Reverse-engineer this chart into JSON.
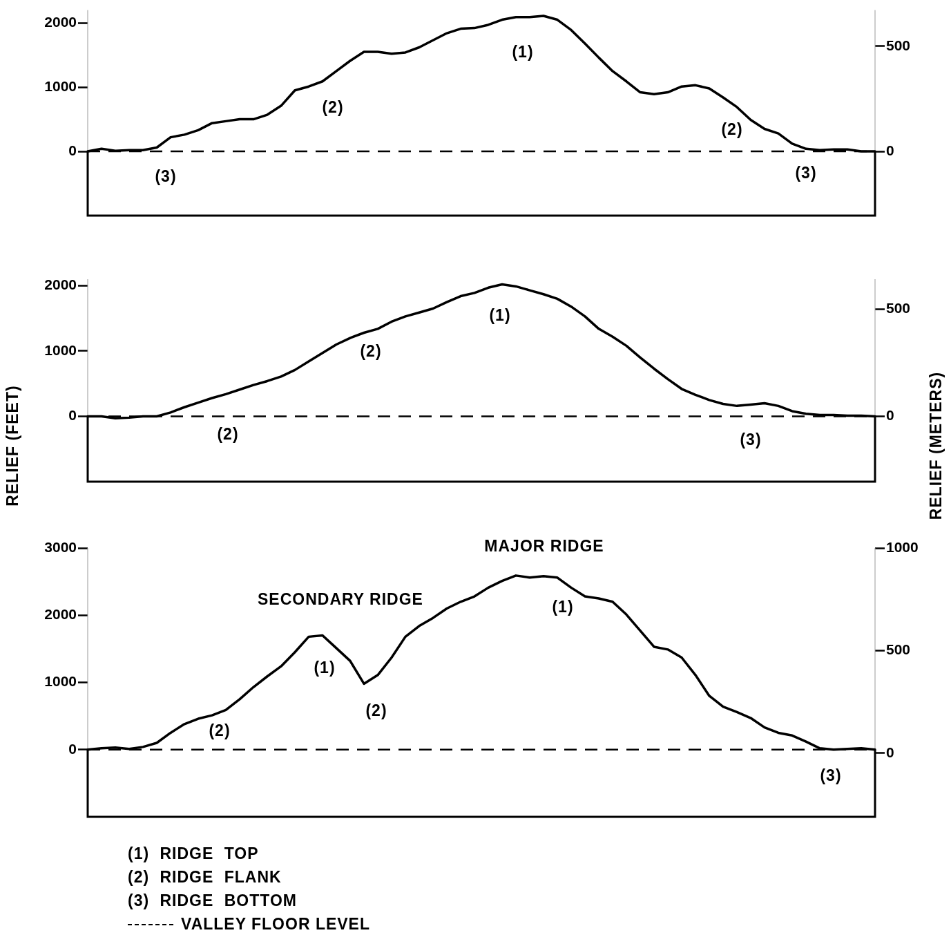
{
  "chart_data": [
    {
      "type": "line",
      "categories": [
        null,
        null,
        null,
        null,
        null,
        null,
        null,
        null,
        null,
        null,
        null,
        null,
        null,
        null,
        null,
        null,
        null,
        null,
        null,
        null,
        null,
        null,
        null,
        null,
        null,
        null,
        null,
        null,
        null,
        null,
        null,
        null,
        null,
        null,
        null,
        null,
        null,
        null,
        null,
        null,
        null,
        null,
        null,
        null,
        null,
        null,
        null,
        null,
        null,
        null,
        null,
        null,
        null,
        null,
        null,
        null,
        null,
        null
      ],
      "values": [
        0,
        40,
        10,
        20,
        20,
        60,
        220,
        260,
        330,
        440,
        470,
        500,
        500,
        570,
        710,
        950,
        1010,
        1090,
        1250,
        1410,
        1550,
        1550,
        1520,
        1540,
        1620,
        1730,
        1840,
        1910,
        1920,
        1970,
        2050,
        2090,
        2090,
        2110,
        2050,
        1890,
        1680,
        1460,
        1250,
        1090,
        920,
        890,
        920,
        1010,
        1030,
        980,
        840,
        690,
        490,
        350,
        280,
        120,
        40,
        20,
        30,
        30,
        0,
        0
      ],
      "color": "#000000",
      "marker": "none",
      "line_style": "solid",
      "ylim": [
        -1000,
        2200
      ],
      "yticks": [
        0,
        1000,
        2000
      ],
      "y2lim": [
        -305,
        671
      ],
      "y2ticks": [
        0,
        500
      ],
      "tick_labels": "y",
      "annotations": [
        "(3)",
        "(2)",
        "(1)",
        "(2)",
        "(3)"
      ],
      "ref_lines": [
        {
          "axis": "y",
          "value": 0,
          "line_style": "dashed",
          "color": "#000000"
        }
      ]
    },
    {
      "type": "line",
      "categories": [
        null,
        null,
        null,
        null,
        null,
        null,
        null,
        null,
        null,
        null,
        null,
        null,
        null,
        null,
        null,
        null,
        null,
        null,
        null,
        null,
        null,
        null,
        null,
        null,
        null,
        null,
        null,
        null,
        null,
        null,
        null,
        null,
        null,
        null,
        null,
        null,
        null,
        null,
        null,
        null,
        null,
        null,
        null,
        null,
        null,
        null,
        null,
        null,
        null,
        null,
        null,
        null,
        null,
        null,
        null,
        null,
        null,
        null
      ],
      "values": [
        0,
        0,
        -30,
        -20,
        0,
        0,
        60,
        140,
        210,
        280,
        340,
        410,
        480,
        540,
        610,
        710,
        840,
        970,
        1100,
        1200,
        1280,
        1340,
        1450,
        1530,
        1590,
        1650,
        1750,
        1840,
        1890,
        1970,
        2020,
        1990,
        1930,
        1870,
        1800,
        1680,
        1530,
        1340,
        1220,
        1080,
        900,
        730,
        570,
        420,
        330,
        250,
        190,
        160,
        180,
        200,
        160,
        80,
        40,
        20,
        20,
        10,
        10,
        0
      ],
      "color": "#000000",
      "marker": "none",
      "line_style": "solid",
      "ylabel": "RELIEF (FEET)",
      "y2label": "RELIEF (METERS)",
      "ylim": [
        -1000,
        2100
      ],
      "yticks": [
        0,
        1000,
        2000
      ],
      "y2lim": [
        -305,
        640
      ],
      "y2ticks": [
        0,
        500
      ],
      "tick_labels": "y",
      "annotations": [
        "(2)",
        "(2)",
        "(1)",
        "(3)"
      ],
      "ref_lines": [
        {
          "axis": "y",
          "value": 0,
          "line_style": "dashed",
          "color": "#000000"
        }
      ]
    },
    {
      "type": "line",
      "categories": [
        null,
        null,
        null,
        null,
        null,
        null,
        null,
        null,
        null,
        null,
        null,
        null,
        null,
        null,
        null,
        null,
        null,
        null,
        null,
        null,
        null,
        null,
        null,
        null,
        null,
        null,
        null,
        null,
        null,
        null,
        null,
        null,
        null,
        null,
        null,
        null,
        null,
        null,
        null,
        null,
        null,
        null,
        null,
        null,
        null,
        null,
        null,
        null,
        null,
        null,
        null,
        null,
        null,
        null,
        null,
        null,
        null,
        null
      ],
      "values": [
        0,
        20,
        30,
        10,
        40,
        100,
        250,
        380,
        460,
        510,
        590,
        750,
        930,
        1090,
        1240,
        1450,
        1680,
        1700,
        1510,
        1320,
        980,
        1110,
        1370,
        1680,
        1840,
        1960,
        2100,
        2200,
        2280,
        2410,
        2510,
        2590,
        2560,
        2580,
        2560,
        2410,
        2280,
        2250,
        2200,
        2010,
        1770,
        1530,
        1490,
        1370,
        1110,
        800,
        640,
        560,
        470,
        330,
        250,
        210,
        120,
        20,
        0,
        10,
        20,
        0
      ],
      "color": "#000000",
      "marker": "none",
      "line_style": "solid",
      "ylim": [
        -1000,
        3000
      ],
      "yticks": [
        0,
        1000,
        2000,
        3000
      ],
      "y2lim": [
        -310,
        1000
      ],
      "y2ticks": [
        0,
        500,
        1000
      ],
      "tick_labels": "y",
      "annotations": [
        "MAJOR RIDGE",
        "SECONDARY RIDGE",
        "(2)",
        "(1)",
        "(2)",
        "(1)",
        "(3)",
        "(1) RIDGE TOP",
        "(2) RIDGE FLANK",
        "(3) RIDGE BOTTOM"
      ],
      "ref_lines": [
        {
          "axis": "y",
          "value": 0,
          "line_style": "dashed",
          "color": "#000000",
          "label": "VALLEY FLOOR LEVEL"
        }
      ]
    }
  ]
}
